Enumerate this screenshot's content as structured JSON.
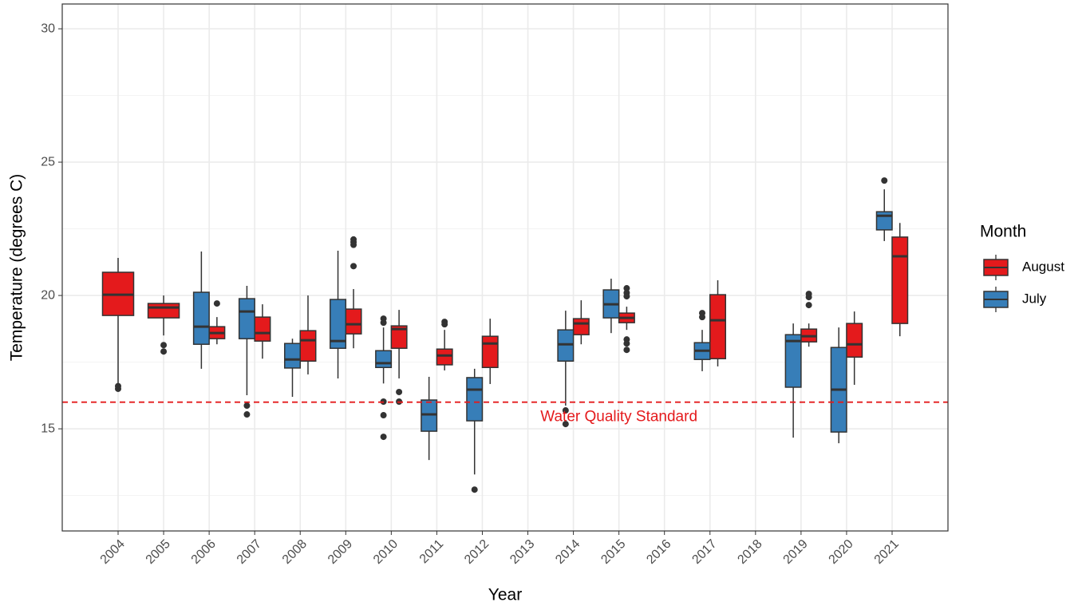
{
  "chart_data": {
    "type": "boxplot",
    "x_label": "Year",
    "y_label": "Temperature (degrees C)",
    "categories": [
      "2004",
      "2005",
      "2006",
      "2007",
      "2008",
      "2009",
      "2010",
      "2011",
      "2012",
      "2013",
      "2014",
      "2015",
      "2016",
      "2017",
      "2018",
      "2019",
      "2020",
      "2021"
    ],
    "ylim": [
      11.17,
      30.93
    ],
    "yticks": [
      15,
      20,
      25,
      30
    ],
    "minor_yticks": [
      12.5,
      17.5,
      22.5,
      27.5
    ],
    "grid": true,
    "legend_title": "Month",
    "legend_position": "right",
    "reference_line": {
      "value": 16,
      "color": "#e41a1c",
      "label": "Water Quality Standard"
    },
    "series": [
      {
        "name": "August",
        "color": "#e41a1c",
        "values": [
          {
            "low": 16.71,
            "q1": 19.25,
            "median": 20.03,
            "q3": 20.87,
            "high": 21.41,
            "outliers": [
              16.6,
              16.5
            ]
          },
          {
            "low": 18.5,
            "q1": 19.16,
            "median": 19.55,
            "q3": 19.7,
            "high": 20.0,
            "outliers": [
              18.14,
              17.9
            ]
          },
          {
            "low": 18.17,
            "q1": 18.38,
            "median": 18.59,
            "q3": 18.83,
            "high": 19.19,
            "outliers": [
              19.7
            ]
          },
          {
            "low": 17.63,
            "q1": 18.29,
            "median": 18.59,
            "q3": 19.19,
            "high": 19.67,
            "outliers": []
          },
          {
            "low": 17.04,
            "q1": 17.54,
            "median": 18.32,
            "q3": 18.68,
            "high": 20.0,
            "outliers": []
          },
          {
            "low": 18.02,
            "q1": 18.56,
            "median": 18.92,
            "q3": 19.49,
            "high": 20.24,
            "outliers": [
              22.1,
              22.0,
              21.9,
              21.1
            ]
          },
          {
            "low": 16.89,
            "q1": 18.02,
            "median": 18.74,
            "q3": 18.86,
            "high": 19.46,
            "outliers": [
              16.38,
              16.02
            ]
          },
          {
            "low": 17.19,
            "q1": 17.4,
            "median": 17.75,
            "q3": 17.99,
            "high": 18.71,
            "outliers": [
              19.01,
              18.92
            ]
          },
          {
            "low": 16.68,
            "q1": 17.3,
            "median": 18.2,
            "q3": 18.47,
            "high": 19.13,
            "outliers": []
          },
          null,
          {
            "low": 18.17,
            "q1": 18.53,
            "median": 18.95,
            "q3": 19.13,
            "high": 19.82,
            "outliers": []
          },
          {
            "low": 18.71,
            "q1": 18.98,
            "median": 19.16,
            "q3": 19.34,
            "high": 19.58,
            "outliers": [
              20.27,
              20.1,
              19.97,
              18.35,
              18.2,
              17.96
            ]
          },
          null,
          {
            "low": 17.34,
            "q1": 17.63,
            "median": 19.07,
            "q3": 20.03,
            "high": 20.57,
            "outliers": []
          },
          null,
          {
            "low": 18.08,
            "q1": 18.26,
            "median": 18.47,
            "q3": 18.74,
            "high": 18.95,
            "outliers": [
              20.06,
              19.94,
              19.64
            ]
          },
          {
            "low": 16.65,
            "q1": 17.69,
            "median": 18.17,
            "q3": 18.95,
            "high": 19.4,
            "outliers": []
          },
          {
            "low": 18.47,
            "q1": 18.95,
            "median": 21.47,
            "q3": 22.19,
            "high": 22.72,
            "outliers": []
          }
        ]
      },
      {
        "name": "July",
        "color": "#377eb8",
        "values": [
          null,
          null,
          {
            "low": 17.25,
            "q1": 18.17,
            "median": 18.83,
            "q3": 20.12,
            "high": 21.65,
            "outliers": []
          },
          {
            "low": 16.26,
            "q1": 18.38,
            "median": 19.4,
            "q3": 19.88,
            "high": 20.36,
            "outliers": [
              15.87,
              15.54
            ]
          },
          {
            "low": 16.2,
            "q1": 17.28,
            "median": 17.6,
            "q3": 18.2,
            "high": 18.38,
            "outliers": []
          },
          {
            "low": 16.89,
            "q1": 18.02,
            "median": 18.29,
            "q3": 19.85,
            "high": 21.68,
            "outliers": []
          },
          {
            "low": 16.7,
            "q1": 17.3,
            "median": 17.46,
            "q3": 17.93,
            "high": 18.8,
            "outliers": [
              19.13,
              18.98,
              16.02,
              15.51,
              14.7
            ]
          },
          {
            "low": 13.83,
            "q1": 14.91,
            "median": 15.54,
            "q3": 16.08,
            "high": 16.95,
            "outliers": []
          },
          {
            "low": 13.29,
            "q1": 15.3,
            "median": 16.47,
            "q3": 16.92,
            "high": 17.25,
            "outliers": [
              12.72
            ]
          },
          null,
          {
            "low": 15.87,
            "q1": 17.54,
            "median": 18.17,
            "q3": 18.71,
            "high": 19.43,
            "outliers": [
              15.69,
              15.18
            ]
          },
          {
            "low": 18.59,
            "q1": 19.16,
            "median": 19.67,
            "q3": 20.21,
            "high": 20.63,
            "outliers": []
          },
          null,
          {
            "low": 17.16,
            "q1": 17.6,
            "median": 17.93,
            "q3": 18.23,
            "high": 18.71,
            "outliers": [
              19.34,
              19.19
            ]
          },
          null,
          {
            "low": 14.67,
            "q1": 16.56,
            "median": 18.29,
            "q3": 18.53,
            "high": 18.95,
            "outliers": []
          },
          {
            "low": 14.46,
            "q1": 14.88,
            "median": 16.47,
            "q3": 18.05,
            "high": 18.8,
            "outliers": []
          },
          {
            "low": 22.04,
            "q1": 22.46,
            "median": 22.99,
            "q3": 23.14,
            "high": 23.98,
            "outliers": [
              24.31
            ]
          }
        ]
      }
    ]
  }
}
